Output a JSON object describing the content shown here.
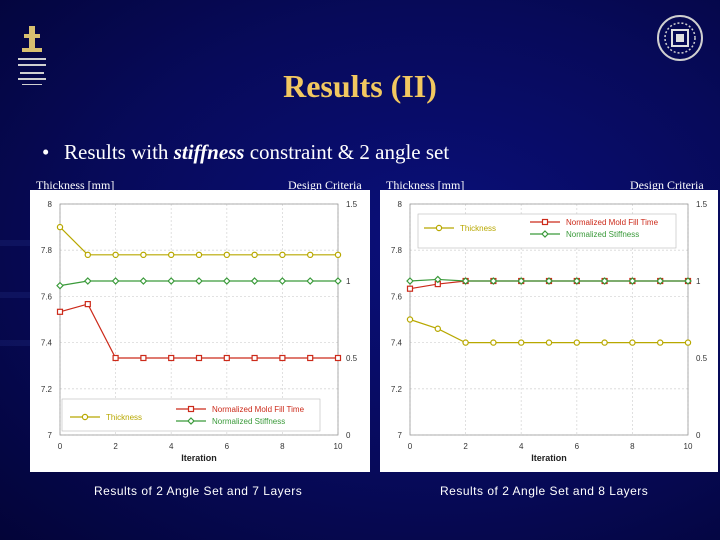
{
  "slide": {
    "title": "Results (II)",
    "bullet": {
      "prefix": "Results with ",
      "emph": "stiffness",
      "suffix": " constraint & 2 angle set"
    }
  },
  "charts": [
    {
      "left_axis_label": "Thickness [mm]",
      "right_axis_label": "Design Criteria",
      "caption": "Results of 2 Angle Set and 7 Layers"
    },
    {
      "left_axis_label": "Thickness [mm]",
      "right_axis_label": "Design Criteria",
      "caption": "Results of 2 Angle Set and 8 Layers"
    }
  ],
  "chart_data": [
    {
      "type": "line",
      "xlabel": "Iteration",
      "xlim": [
        0,
        10
      ],
      "xticks": [
        0,
        2,
        4,
        6,
        8,
        10
      ],
      "ylim_left": [
        7,
        8
      ],
      "yticks_left": [
        7,
        7.2,
        7.4,
        7.6,
        7.8,
        8
      ],
      "ylim_right": [
        0,
        1.5
      ],
      "yticks_right": [
        0,
        0.5,
        1,
        1.5
      ],
      "legend_position": "bottom",
      "series": [
        {
          "name": "Thickness",
          "axis": "left",
          "color": "#b8a800",
          "marker": "circle",
          "x": [
            0,
            1,
            2,
            3,
            4,
            5,
            6,
            7,
            8,
            9,
            10
          ],
          "values": [
            7.9,
            7.78,
            7.78,
            7.78,
            7.78,
            7.78,
            7.78,
            7.78,
            7.78,
            7.78,
            7.78
          ]
        },
        {
          "name": "Normalized Mold Fill Time",
          "axis": "right",
          "color": "#cc2a1a",
          "marker": "square",
          "x": [
            0,
            1,
            2,
            3,
            4,
            5,
            6,
            7,
            8,
            9,
            10
          ],
          "values": [
            0.8,
            0.85,
            0.5,
            0.5,
            0.5,
            0.5,
            0.5,
            0.5,
            0.5,
            0.5,
            0.5
          ]
        },
        {
          "name": "Normalized Stiffness",
          "axis": "right",
          "color": "#3a9a3a",
          "marker": "diamond",
          "x": [
            0,
            1,
            2,
            3,
            4,
            5,
            6,
            7,
            8,
            9,
            10
          ],
          "values": [
            0.97,
            1.0,
            1.0,
            1.0,
            1.0,
            1.0,
            1.0,
            1.0,
            1.0,
            1.0,
            1.0
          ]
        }
      ]
    },
    {
      "type": "line",
      "xlabel": "Iteration",
      "xlim": [
        0,
        10
      ],
      "xticks": [
        0,
        2,
        4,
        6,
        8,
        10
      ],
      "ylim_left": [
        7,
        8
      ],
      "yticks_left": [
        7,
        7.2,
        7.4,
        7.6,
        7.8,
        8
      ],
      "ylim_right": [
        0,
        1.5
      ],
      "yticks_right": [
        0,
        0.5,
        1,
        1.5
      ],
      "legend_position": "top",
      "series": [
        {
          "name": "Thickness",
          "axis": "left",
          "color": "#b8a800",
          "marker": "circle",
          "x": [
            0,
            1,
            2,
            3,
            4,
            5,
            6,
            7,
            8,
            9,
            10
          ],
          "values": [
            7.5,
            7.46,
            7.4,
            7.4,
            7.4,
            7.4,
            7.4,
            7.4,
            7.4,
            7.4,
            7.4
          ]
        },
        {
          "name": "Normalized Mold Fill Time",
          "axis": "right",
          "color": "#cc2a1a",
          "marker": "square",
          "x": [
            0,
            1,
            2,
            3,
            4,
            5,
            6,
            7,
            8,
            9,
            10
          ],
          "values": [
            0.95,
            0.98,
            1.0,
            1.0,
            1.0,
            1.0,
            1.0,
            1.0,
            1.0,
            1.0,
            1.0
          ]
        },
        {
          "name": "Normalized Stiffness",
          "axis": "right",
          "color": "#3a9a3a",
          "marker": "diamond",
          "x": [
            0,
            1,
            2,
            3,
            4,
            5,
            6,
            7,
            8,
            9,
            10
          ],
          "values": [
            1.0,
            1.01,
            1.0,
            1.0,
            1.0,
            1.0,
            1.0,
            1.0,
            1.0,
            1.0,
            1.0
          ]
        }
      ]
    }
  ]
}
